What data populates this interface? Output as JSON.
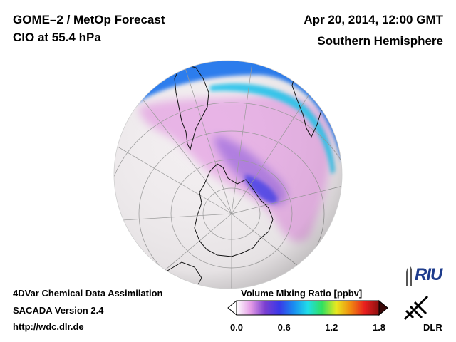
{
  "header": {
    "title": "GOME–2 / MetOp Forecast",
    "species": "ClO at 55.4 hPa",
    "datetime": "Apr 20, 2014, 12:00 GMT",
    "hemisphere": "Southern Hemisphere"
  },
  "footer": {
    "line1": "4DVar Chemical Data Assimilation",
    "line2": "SACADA Version 2.4",
    "url": "http://wdc.dlr.de"
  },
  "colorbar": {
    "label": "Volume Mixing Ratio [ppbv]",
    "ticks": [
      "0.0",
      "0.6",
      "1.2",
      "1.8"
    ],
    "min": 0.0,
    "max": 1.8,
    "colors": [
      "#ffffff",
      "#e39be6",
      "#7b3fd0",
      "#3a38e8",
      "#1a8cf0",
      "#20dde8",
      "#30e060",
      "#e8e820",
      "#f08a10",
      "#e81e1e",
      "#8c1010"
    ]
  },
  "logos": {
    "riu": "RIU",
    "dlr": "DLR"
  }
}
